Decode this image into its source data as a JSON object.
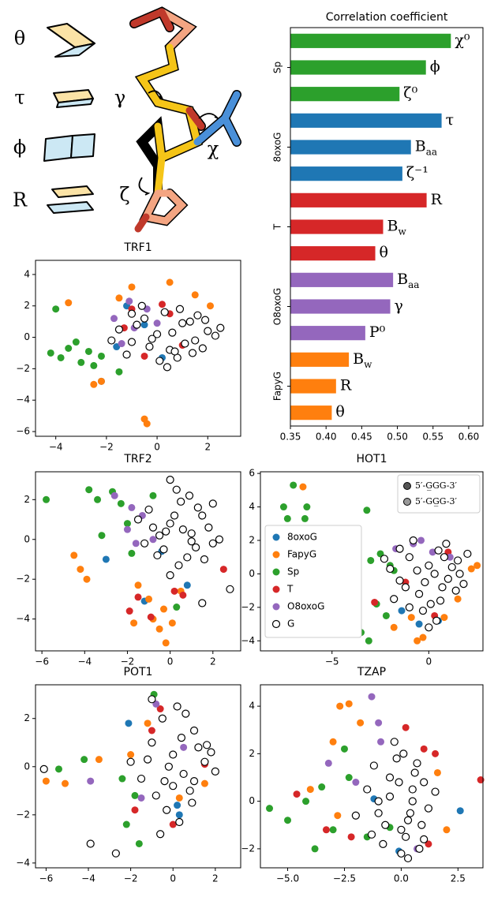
{
  "diagram": {
    "labels": [
      "θ",
      "τ",
      "ϕ",
      "R",
      "γ",
      "χ",
      "ζ"
    ]
  },
  "chart_data": [
    {
      "type": "bar",
      "orientation": "horizontal",
      "title": "Correlation coefficient",
      "xlim": [
        0.35,
        0.62
      ],
      "xticks": [
        0.35,
        {
          "value": 0.4,
          "label": "0.40"
        },
        0.45,
        {
          "value": 0.5,
          "label": "0.50"
        },
        0.55,
        {
          "value": 0.6,
          "label": "0.60"
        }
      ],
      "groups": [
        {
          "name": "Sp",
          "color": "#2ca02c",
          "labels": [
            "χ⁰",
            "ϕ",
            "ζ⁰"
          ],
          "values": [
            0.575,
            0.54,
            0.503
          ]
        },
        {
          "name": "8oxoG",
          "color": "#1f77b4",
          "labels": [
            "τ",
            "Baa",
            "ζ⁻¹"
          ],
          "values": [
            0.562,
            0.519,
            0.507
          ]
        },
        {
          "name": "T",
          "color": "#d62728",
          "labels": [
            "R",
            "Bw",
            "θ"
          ],
          "values": [
            0.541,
            0.48,
            0.469
          ]
        },
        {
          "name": "O8oxoG",
          "color": "#9467bd",
          "labels": [
            "Baa",
            "γ",
            "P⁰"
          ],
          "values": [
            0.494,
            0.49,
            0.455
          ]
        },
        {
          "name": "FapyG",
          "color": "#ff7f0e",
          "labels": [
            "Bw",
            "R",
            "θ"
          ],
          "values": [
            0.432,
            0.414,
            0.408
          ]
        }
      ]
    },
    {
      "type": "scatter",
      "title": "TRF1",
      "xlim": [
        -4.8,
        3.3
      ],
      "ylim": [
        -6.3,
        4.9
      ],
      "xticks": [
        {
          "value": -4,
          "label": "−4"
        },
        {
          "value": -2,
          "label": "−2"
        },
        0,
        2
      ],
      "yticks": [
        {
          "value": -6,
          "label": "−6"
        },
        {
          "value": -4,
          "label": "−4"
        },
        {
          "value": -2,
          "label": "−2"
        },
        0,
        2,
        4
      ],
      "series": [
        {
          "color": "#1f77b4",
          "x": [
            -2.2,
            -1.6,
            -1.2,
            -0.5,
            0.2
          ],
          "y": [
            -2.8,
            -0.6,
            2.0,
            0.8,
            -1.3
          ]
        },
        {
          "color": "#ff7f0e",
          "x": [
            -2.2,
            -1.5,
            -0.5,
            -0.4,
            1.5,
            2.1,
            -2.5,
            0.5,
            -3.5,
            -1.0
          ],
          "y": [
            -2.8,
            2.5,
            -5.2,
            -5.5,
            2.7,
            2.0,
            -3.0,
            3.5,
            2.2,
            3.2
          ]
        },
        {
          "color": "#2ca02c",
          "x": [
            -4.2,
            -3.8,
            -3.5,
            -3.0,
            -2.7,
            -2.2,
            -4.0,
            -3.2,
            -1.5,
            -2.5
          ],
          "y": [
            -1.0,
            -1.3,
            -0.7,
            -1.6,
            -0.9,
            -1.2,
            1.8,
            -0.3,
            -2.2,
            -1.8
          ]
        },
        {
          "color": "#d62728",
          "x": [
            -1.0,
            -0.5,
            0.2,
            -1.3,
            0.5,
            1.0
          ],
          "y": [
            1.8,
            -1.2,
            2.1,
            0.6,
            1.5,
            -0.5
          ]
        },
        {
          "color": "#9467bd",
          "x": [
            -1.7,
            -0.9,
            -0.4,
            -1.4,
            0.0,
            -1.1
          ],
          "y": [
            1.2,
            0.6,
            1.8,
            -0.4,
            0.9,
            2.3
          ]
        },
        {
          "color": "#ffffff",
          "edgecolor": "#000000",
          "x": [
            -1.5,
            -1,
            -0.5,
            0,
            0.5,
            1,
            1.5,
            2,
            -1.2,
            -0.3,
            0.3,
            0.8,
            1.3,
            1.8,
            2.3,
            -0.8,
            0.1,
            0.6,
            1.1,
            1.6,
            -1.8,
            -0.6,
            0.4,
            0.9,
            1.4,
            2.5,
            -0.2,
            0.7,
            1.9,
            -1.0
          ],
          "y": [
            0.5,
            -0.3,
            1.2,
            0.2,
            -0.8,
            0.9,
            -0.2,
            0.4,
            -1.1,
            -0.6,
            1.6,
            -1.3,
            1.0,
            -0.7,
            0.1,
            0.8,
            -1.5,
            0.3,
            -0.4,
            1.4,
            -0.2,
            2.0,
            -1.9,
            1.8,
            -1.0,
            0.6,
            -0.1,
            -0.9,
            1.1,
            1.5
          ]
        }
      ]
    },
    {
      "type": "scatter",
      "title": "TRF2",
      "xlim": [
        -6.3,
        3.3
      ],
      "ylim": [
        -5.6,
        3.4
      ],
      "xticks": [
        {
          "value": -6,
          "label": "−6"
        },
        {
          "value": -4,
          "label": "−4"
        },
        {
          "value": -2,
          "label": "−2"
        },
        0,
        2
      ],
      "yticks": [
        {
          "value": -4,
          "label": "−4"
        },
        {
          "value": -2,
          "label": "−2"
        },
        0,
        2
      ],
      "series": [
        {
          "color": "#1f77b4",
          "x": [
            -3.0,
            -1.2,
            -0.4,
            0.8
          ],
          "y": [
            -1.0,
            -3.1,
            -0.6,
            -2.3
          ]
        },
        {
          "color": "#ff7f0e",
          "x": [
            -4.5,
            -4.2,
            -3.9,
            -1.5,
            -0.8,
            -0.5,
            -0.2,
            0.1,
            -1.0,
            0.5,
            -1.7,
            -0.3
          ],
          "y": [
            -0.8,
            -1.5,
            -2.0,
            -2.3,
            -4.0,
            -4.5,
            -5.2,
            -4.2,
            -3.0,
            -2.6,
            -4.2,
            -3.5
          ]
        },
        {
          "color": "#2ca02c",
          "x": [
            -5.8,
            -3.8,
            -3.4,
            -2.7,
            -2.3,
            -1.8,
            -2.0,
            -3.2,
            -0.8,
            0.3
          ],
          "y": [
            2.0,
            2.5,
            2.0,
            2.4,
            1.8,
            -0.7,
            0.8,
            0.2,
            2.2,
            -3.4
          ]
        },
        {
          "color": "#d62728",
          "x": [
            -1.9,
            -1.5,
            0.2,
            0.6,
            2.5,
            -0.9
          ],
          "y": [
            -3.6,
            -2.9,
            -2.6,
            -2.8,
            -1.5,
            -3.9
          ]
        },
        {
          "color": "#9467bd",
          "x": [
            -2.0,
            -1.6,
            -1.3,
            -0.8,
            -1.8,
            -2.6
          ],
          "y": [
            0.5,
            -0.2,
            1.2,
            0.0,
            1.6,
            2.2
          ]
        },
        {
          "color": "#ffffff",
          "edgecolor": "#000000",
          "x": [
            -1,
            0,
            1,
            2,
            -0.5,
            0.5,
            1.5,
            -1.5,
            -0.3,
            0.8,
            1.8,
            2.3,
            0.2,
            1.2,
            -0.8,
            0.0,
            0.9,
            1.6,
            -1.2,
            0.4,
            1.3,
            2.0,
            -0.2,
            0.6,
            1.0,
            0.0,
            2.8,
            1.5,
            0.3,
            -0.6
          ],
          "y": [
            1.5,
            0.8,
            0.3,
            -0.2,
            0.2,
            1.9,
            1.2,
            1.0,
            -0.5,
            -0.9,
            0.6,
            0.0,
            1.2,
            -0.4,
            0.6,
            3.0,
            2.2,
            -1.0,
            -0.2,
            -1.3,
            1.6,
            1.8,
            0.4,
            0.5,
            -0.1,
            -1.8,
            -2.5,
            -3.2,
            2.5,
            -0.8
          ]
        }
      ]
    },
    {
      "type": "scatter",
      "title": "HOT1",
      "xlim": [
        -8.7,
        2.8
      ],
      "ylim": [
        -4.6,
        6.1
      ],
      "xticks": [
        {
          "value": -5,
          "label": "−5"
        },
        0
      ],
      "yticks": [
        {
          "value": -4,
          "label": "−4"
        },
        {
          "value": -2,
          "label": "−2"
        },
        0,
        2,
        4,
        6
      ],
      "legend": "center left",
      "edge_legend": [
        {
          "label": "5′-G̲GG-3′",
          "color": "#555555"
        },
        {
          "label": "5′-GG̲G-3′",
          "color": "#999999"
        }
      ],
      "series": [
        {
          "name": "8oxoG",
          "color": "#1f77b4",
          "x": [
            -1.4,
            -0.5,
            0.5
          ],
          "y": [
            -2.2,
            -3.0,
            -2.8
          ]
        },
        {
          "name": "FapyG",
          "color": "#ff7f0e",
          "x": [
            -6.5,
            -0.6,
            2.2,
            -1.8,
            -0.9,
            0.8,
            1.5,
            -0.3,
            2.5
          ],
          "y": [
            5.2,
            -4.0,
            0.3,
            -3.2,
            -2.6,
            -2.6,
            -1.5,
            -3.8,
            0.5
          ]
        },
        {
          "name": "Sp",
          "color": "#2ca02c",
          "x": [
            -7.5,
            -7.0,
            -6.3,
            -7.3,
            -6.4,
            -3.2,
            -3.8,
            -2.5,
            -2.0,
            -3.0,
            -2.7,
            -3.5,
            -2.2,
            -3.1,
            -1.8
          ],
          "y": [
            4.0,
            5.3,
            4.0,
            3.3,
            3.3,
            3.8,
            2.0,
            1.2,
            0.5,
            0.8,
            -1.8,
            -3.5,
            -2.5,
            -4.0,
            0.2
          ]
        },
        {
          "name": "T",
          "color": "#d62728",
          "x": [
            -2.8,
            -1.2,
            0.3,
            1.0
          ],
          "y": [
            -1.7,
            -0.5,
            -2.5,
            1.3
          ]
        },
        {
          "name": "O8oxoG",
          "color": "#9467bd",
          "x": [
            -1.7,
            -0.8,
            0.2,
            1.1,
            -0.4
          ],
          "y": [
            1.5,
            1.8,
            1.3,
            1.0,
            2.0
          ]
        },
        {
          "name": "G",
          "color": "#ffffff",
          "edgecolor": "#000000",
          "x": [
            -2,
            -1.5,
            -1,
            -0.5,
            0,
            0.5,
            1,
            1.5,
            -1.8,
            -1.2,
            -0.3,
            0.3,
            0.9,
            1.4,
            2.0,
            -0.8,
            0.1,
            0.7,
            1.2,
            -1.5,
            -0.6,
            0.4,
            1.6,
            -1.0,
            0.0,
            0.8,
            -0.2,
            -2.3,
            0.6,
            1.8
          ],
          "y": [
            0.3,
            -0.4,
            1.0,
            -1.2,
            0.5,
            1.4,
            -0.3,
            0.8,
            -1.5,
            -0.8,
            -2.2,
            0.0,
            1.8,
            -1.0,
            1.2,
            2.0,
            -1.8,
            -0.8,
            0.4,
            1.5,
            0.2,
            -2.8,
            0.0,
            -2.0,
            -3.2,
            1.0,
            -0.5,
            0.9,
            -1.6,
            -0.6
          ]
        }
      ]
    },
    {
      "type": "scatter",
      "title": "POT1",
      "xlim": [
        -6.5,
        3.2
      ],
      "ylim": [
        -4.2,
        3.4
      ],
      "xticks": [
        {
          "value": -6,
          "label": "−6"
        },
        {
          "value": -4,
          "label": "−4"
        },
        {
          "value": -2,
          "label": "−2"
        },
        0,
        2
      ],
      "yticks": [
        {
          "value": -4,
          "label": "−4"
        },
        {
          "value": -2,
          "label": "−2"
        },
        0,
        2
      ],
      "series": [
        {
          "color": "#1f77b4",
          "x": [
            -2.1,
            0.2,
            0.3
          ],
          "y": [
            1.8,
            -1.6,
            -2.0
          ]
        },
        {
          "color": "#ff7f0e",
          "x": [
            -6.0,
            -5.1,
            -3.5,
            -1.2,
            0.3,
            1.5,
            -2.0
          ],
          "y": [
            -0.6,
            -0.7,
            0.3,
            1.8,
            -1.3,
            -0.7,
            0.5
          ]
        },
        {
          "color": "#2ca02c",
          "x": [
            -5.4,
            -4.2,
            -2.2,
            -1.8,
            -0.9,
            -2.4,
            -1.6,
            0.2
          ],
          "y": [
            -0.1,
            0.3,
            -2.4,
            -1.2,
            3.0,
            -0.5,
            -3.2,
            2.5
          ]
        },
        {
          "color": "#d62728",
          "x": [
            -1.0,
            -0.6,
            1.5,
            0.0,
            -1.8
          ],
          "y": [
            1.5,
            2.4,
            0.1,
            -2.4,
            -1.8
          ]
        },
        {
          "color": "#9467bd",
          "x": [
            -3.9,
            -0.8,
            -1.5,
            0.5
          ],
          "y": [
            -0.6,
            2.6,
            -1.3,
            0.8
          ]
        },
        {
          "color": "#ffffff",
          "edgecolor": "#000000",
          "x": [
            -1,
            -0.5,
            0,
            0.5,
            1,
            1.5,
            -1.5,
            -0.8,
            0.2,
            0.8,
            1.2,
            2.0,
            -1.2,
            -0.3,
            0.4,
            1.0,
            -0.6,
            0.6,
            1.6,
            -2.0,
            0.0,
            -1.0,
            0.3,
            -0.2,
            -6.1,
            -3.9,
            -2.7,
            -0.4,
            0.9,
            1.8
          ],
          "y": [
            1.0,
            2.0,
            0.5,
            -0.3,
            1.5,
            0.2,
            -0.5,
            -1.2,
            2.5,
            -1.0,
            0.8,
            -0.2,
            0.3,
            -1.8,
            1.2,
            -0.6,
            -2.8,
            2.2,
            0.9,
            0.2,
            -0.8,
            2.8,
            -2.3,
            0.0,
            -0.1,
            -3.2,
            -3.6,
            -0.6,
            -1.5,
            0.6
          ]
        }
      ]
    },
    {
      "type": "scatter",
      "title": "TZAP",
      "xlim": [
        -6.2,
        3.6
      ],
      "ylim": [
        -2.8,
        4.9
      ],
      "xticks": [
        {
          "value": -5,
          "label": "−5.0"
        },
        {
          "value": -2.5,
          "label": "−2.5"
        },
        {
          "value": 0,
          "label": "0.0"
        },
        2.5
      ],
      "yticks": [
        {
          "value": -2,
          "label": "−2"
        },
        0,
        2,
        4
      ],
      "series": [
        {
          "color": "#1f77b4",
          "x": [
            2.6,
            -1.2,
            -0.1
          ],
          "y": [
            -0.4,
            0.1,
            -2.1
          ]
        },
        {
          "color": "#ff7f0e",
          "x": [
            -2.7,
            -2.3,
            -1.8,
            -3.0,
            2.0,
            1.6,
            -4.0,
            -2.8
          ],
          "y": [
            4.0,
            4.1,
            3.3,
            2.5,
            -1.2,
            1.2,
            0.5,
            -0.6
          ]
        },
        {
          "color": "#2ca02c",
          "x": [
            -5.8,
            -5.0,
            -4.2,
            -3.5,
            -3.0,
            -2.3,
            -2.5,
            -1.5,
            -3.8,
            -0.5
          ],
          "y": [
            -0.3,
            -0.8,
            0.0,
            0.6,
            -1.2,
            1.0,
            2.2,
            -1.5,
            -2.0,
            -1.1
          ]
        },
        {
          "color": "#d62728",
          "x": [
            1.0,
            1.5,
            3.5,
            -2.2,
            -4.6,
            0.2,
            -3.3,
            1.2
          ],
          "y": [
            2.2,
            2.0,
            0.9,
            -1.5,
            0.3,
            3.1,
            -1.2,
            -1.8
          ]
        },
        {
          "color": "#9467bd",
          "x": [
            -1.0,
            -1.3,
            -0.9,
            -3.2,
            -2.0,
            0.7
          ],
          "y": [
            3.3,
            4.4,
            2.5,
            1.6,
            0.8,
            -2.0
          ]
        },
        {
          "color": "#ffffff",
          "edgecolor": "#000000",
          "x": [
            -1.5,
            -1,
            -0.5,
            0,
            0.5,
            1,
            -0.8,
            -0.2,
            0.3,
            0.8,
            -1.2,
            0.0,
            0.6,
            -0.5,
            0.2,
            1.2,
            -0.3,
            0.5,
            -1.0,
            0.9,
            0.1,
            -0.7,
            0.4,
            1.5,
            -2.0,
            0.7,
            -0.1,
            -1.3,
            1.0,
            0.3
          ],
          "y": [
            0.5,
            -0.5,
            1.0,
            -1.2,
            0.0,
            0.8,
            -1.8,
            1.8,
            -0.8,
            -2.0,
            1.5,
            -2.2,
            1.2,
            0.2,
            -1.5,
            -0.3,
            2.5,
            0.5,
            0.0,
            -1.0,
            2.0,
            -1.0,
            -0.5,
            0.4,
            -0.6,
            1.6,
            0.8,
            -1.4,
            -1.6,
            -2.4
          ]
        }
      ]
    }
  ]
}
